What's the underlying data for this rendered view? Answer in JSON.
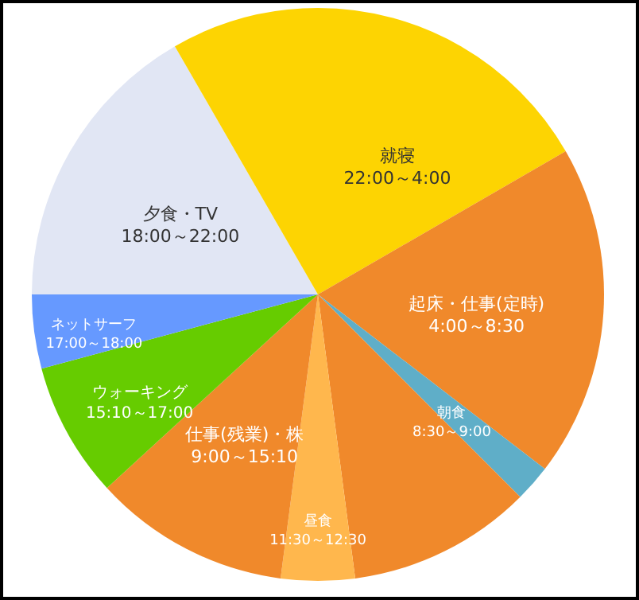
{
  "chart_data": {
    "type": "pie",
    "categories": [
      "就寝\n22:00～4:00",
      "起床・仕事(定時)\n4:00～8:30",
      "朝食\n8:30～9:00",
      null,
      "昼食\n11:30～12:30",
      "仕事(残業)・株\n9:00～15:10",
      "ウォーキング\n15:10～17:00",
      "ネットサーフ\n17:00～18:00",
      "夕食・TV\n18:00～22:00",
      null
    ],
    "values": [
      16.667,
      18.75,
      2.083,
      10.417,
      4.167,
      11.111,
      7.639,
      4.167,
      16.667,
      8.333
    ],
    "colors": [
      "#fdd402",
      "#f0892b",
      "#5faec8",
      "#f0892b",
      "#ffb74d",
      "#f0892b",
      "#66cc00",
      "#6699ff",
      "#e1e6f4",
      "#fdd402"
    ]
  }
}
